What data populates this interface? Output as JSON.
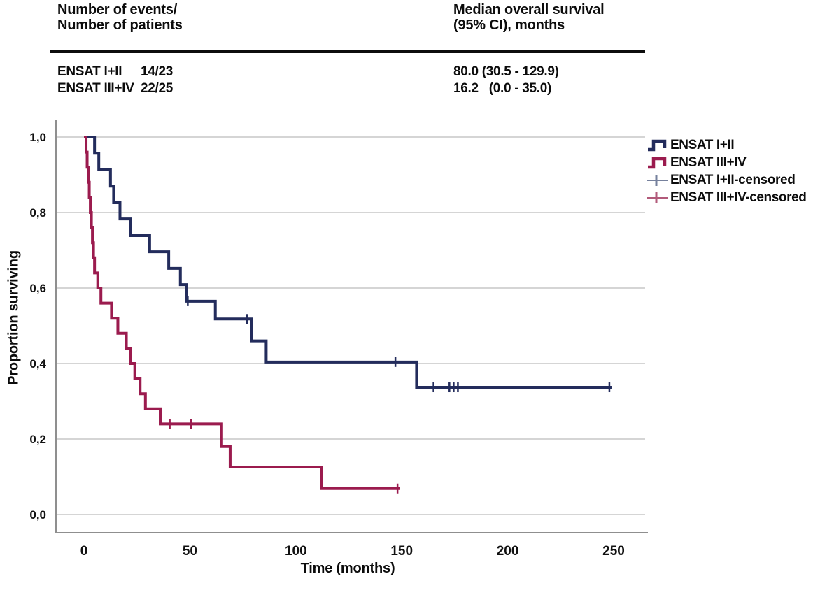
{
  "table": {
    "col1_header_line1": "Number of events/",
    "col1_header_line2": "Number of patients",
    "col2_header_line1": "Median overall survival",
    "col2_header_line2": "(95% CI), months",
    "rows": [
      {
        "group": "ENSAT I+II",
        "events_patients": "14/23",
        "median_ci": "80.0 (30.5 - 129.9)"
      },
      {
        "group": "ENSAT III+IV",
        "events_patients": "22/25",
        "median_ci": "16.2   (0.0 - 35.0)"
      }
    ]
  },
  "chart_data": {
    "type": "line",
    "variant": "kaplan-meier-step",
    "title": "",
    "xlabel": "Time (months)",
    "ylabel": "Proportion surviving",
    "xlim": [
      0,
      265
    ],
    "ylim": [
      0.0,
      1.05
    ],
    "xticks": [
      0,
      50,
      100,
      150,
      200,
      250
    ],
    "xtick_labels": [
      "0",
      "50",
      "100",
      "150",
      "200",
      "250"
    ],
    "yticks": [
      1.0,
      0.8,
      0.6,
      0.4,
      0.2,
      0.0
    ],
    "ytick_labels": [
      "1,0",
      "0,8",
      "0,6",
      "0,4",
      "0,2",
      "0,0"
    ],
    "grid": "horizontal",
    "gridline_color": "#c7c7c7",
    "axis_line_color": "#8f8f8f",
    "legend_position": "right",
    "series": [
      {
        "name": "ENSAT I+II",
        "color": "#232c5c",
        "start": [
          0,
          1.0
        ],
        "steps": [
          [
            5,
            0.957
          ],
          [
            7,
            0.913
          ],
          [
            12.5,
            0.87
          ],
          [
            14,
            0.826
          ],
          [
            17,
            0.783
          ],
          [
            22,
            0.739
          ],
          [
            31,
            0.696
          ],
          [
            40,
            0.652
          ],
          [
            45.5,
            0.609
          ],
          [
            48.5,
            0.565
          ],
          [
            62,
            0.518
          ],
          [
            79,
            0.46
          ],
          [
            86,
            0.404
          ],
          [
            157,
            0.337
          ]
        ],
        "end_time": 249,
        "censored": [
          [
            49,
            0.565
          ],
          [
            77,
            0.518
          ],
          [
            147,
            0.404
          ],
          [
            165,
            0.337
          ],
          [
            172.5,
            0.337
          ],
          [
            174.5,
            0.337
          ],
          [
            176.5,
            0.337
          ],
          [
            248,
            0.337
          ]
        ]
      },
      {
        "name": "ENSAT III+IV",
        "color": "#9b1b4e",
        "start": [
          0,
          1.0
        ],
        "steps": [
          [
            1,
            0.96
          ],
          [
            1.5,
            0.92
          ],
          [
            2,
            0.88
          ],
          [
            2.5,
            0.84
          ],
          [
            3,
            0.8
          ],
          [
            3.5,
            0.76
          ],
          [
            4,
            0.72
          ],
          [
            4.5,
            0.68
          ],
          [
            5,
            0.64
          ],
          [
            6.5,
            0.6
          ],
          [
            8,
            0.56
          ],
          [
            13,
            0.52
          ],
          [
            16,
            0.48
          ],
          [
            20,
            0.44
          ],
          [
            22,
            0.4
          ],
          [
            24,
            0.36
          ],
          [
            26.5,
            0.32
          ],
          [
            29,
            0.28
          ],
          [
            36,
            0.24
          ],
          [
            65,
            0.18
          ],
          [
            69,
            0.126
          ],
          [
            112,
            0.069
          ]
        ],
        "end_time": 149,
        "censored": [
          [
            40.5,
            0.24
          ],
          [
            50.5,
            0.24
          ],
          [
            148,
            0.069
          ]
        ]
      }
    ],
    "censored_legend": [
      {
        "name": "ENSAT I+II-censored",
        "color": "#76819d"
      },
      {
        "name": "ENSAT III+IV-censored",
        "color": "#b25a7a"
      }
    ]
  }
}
